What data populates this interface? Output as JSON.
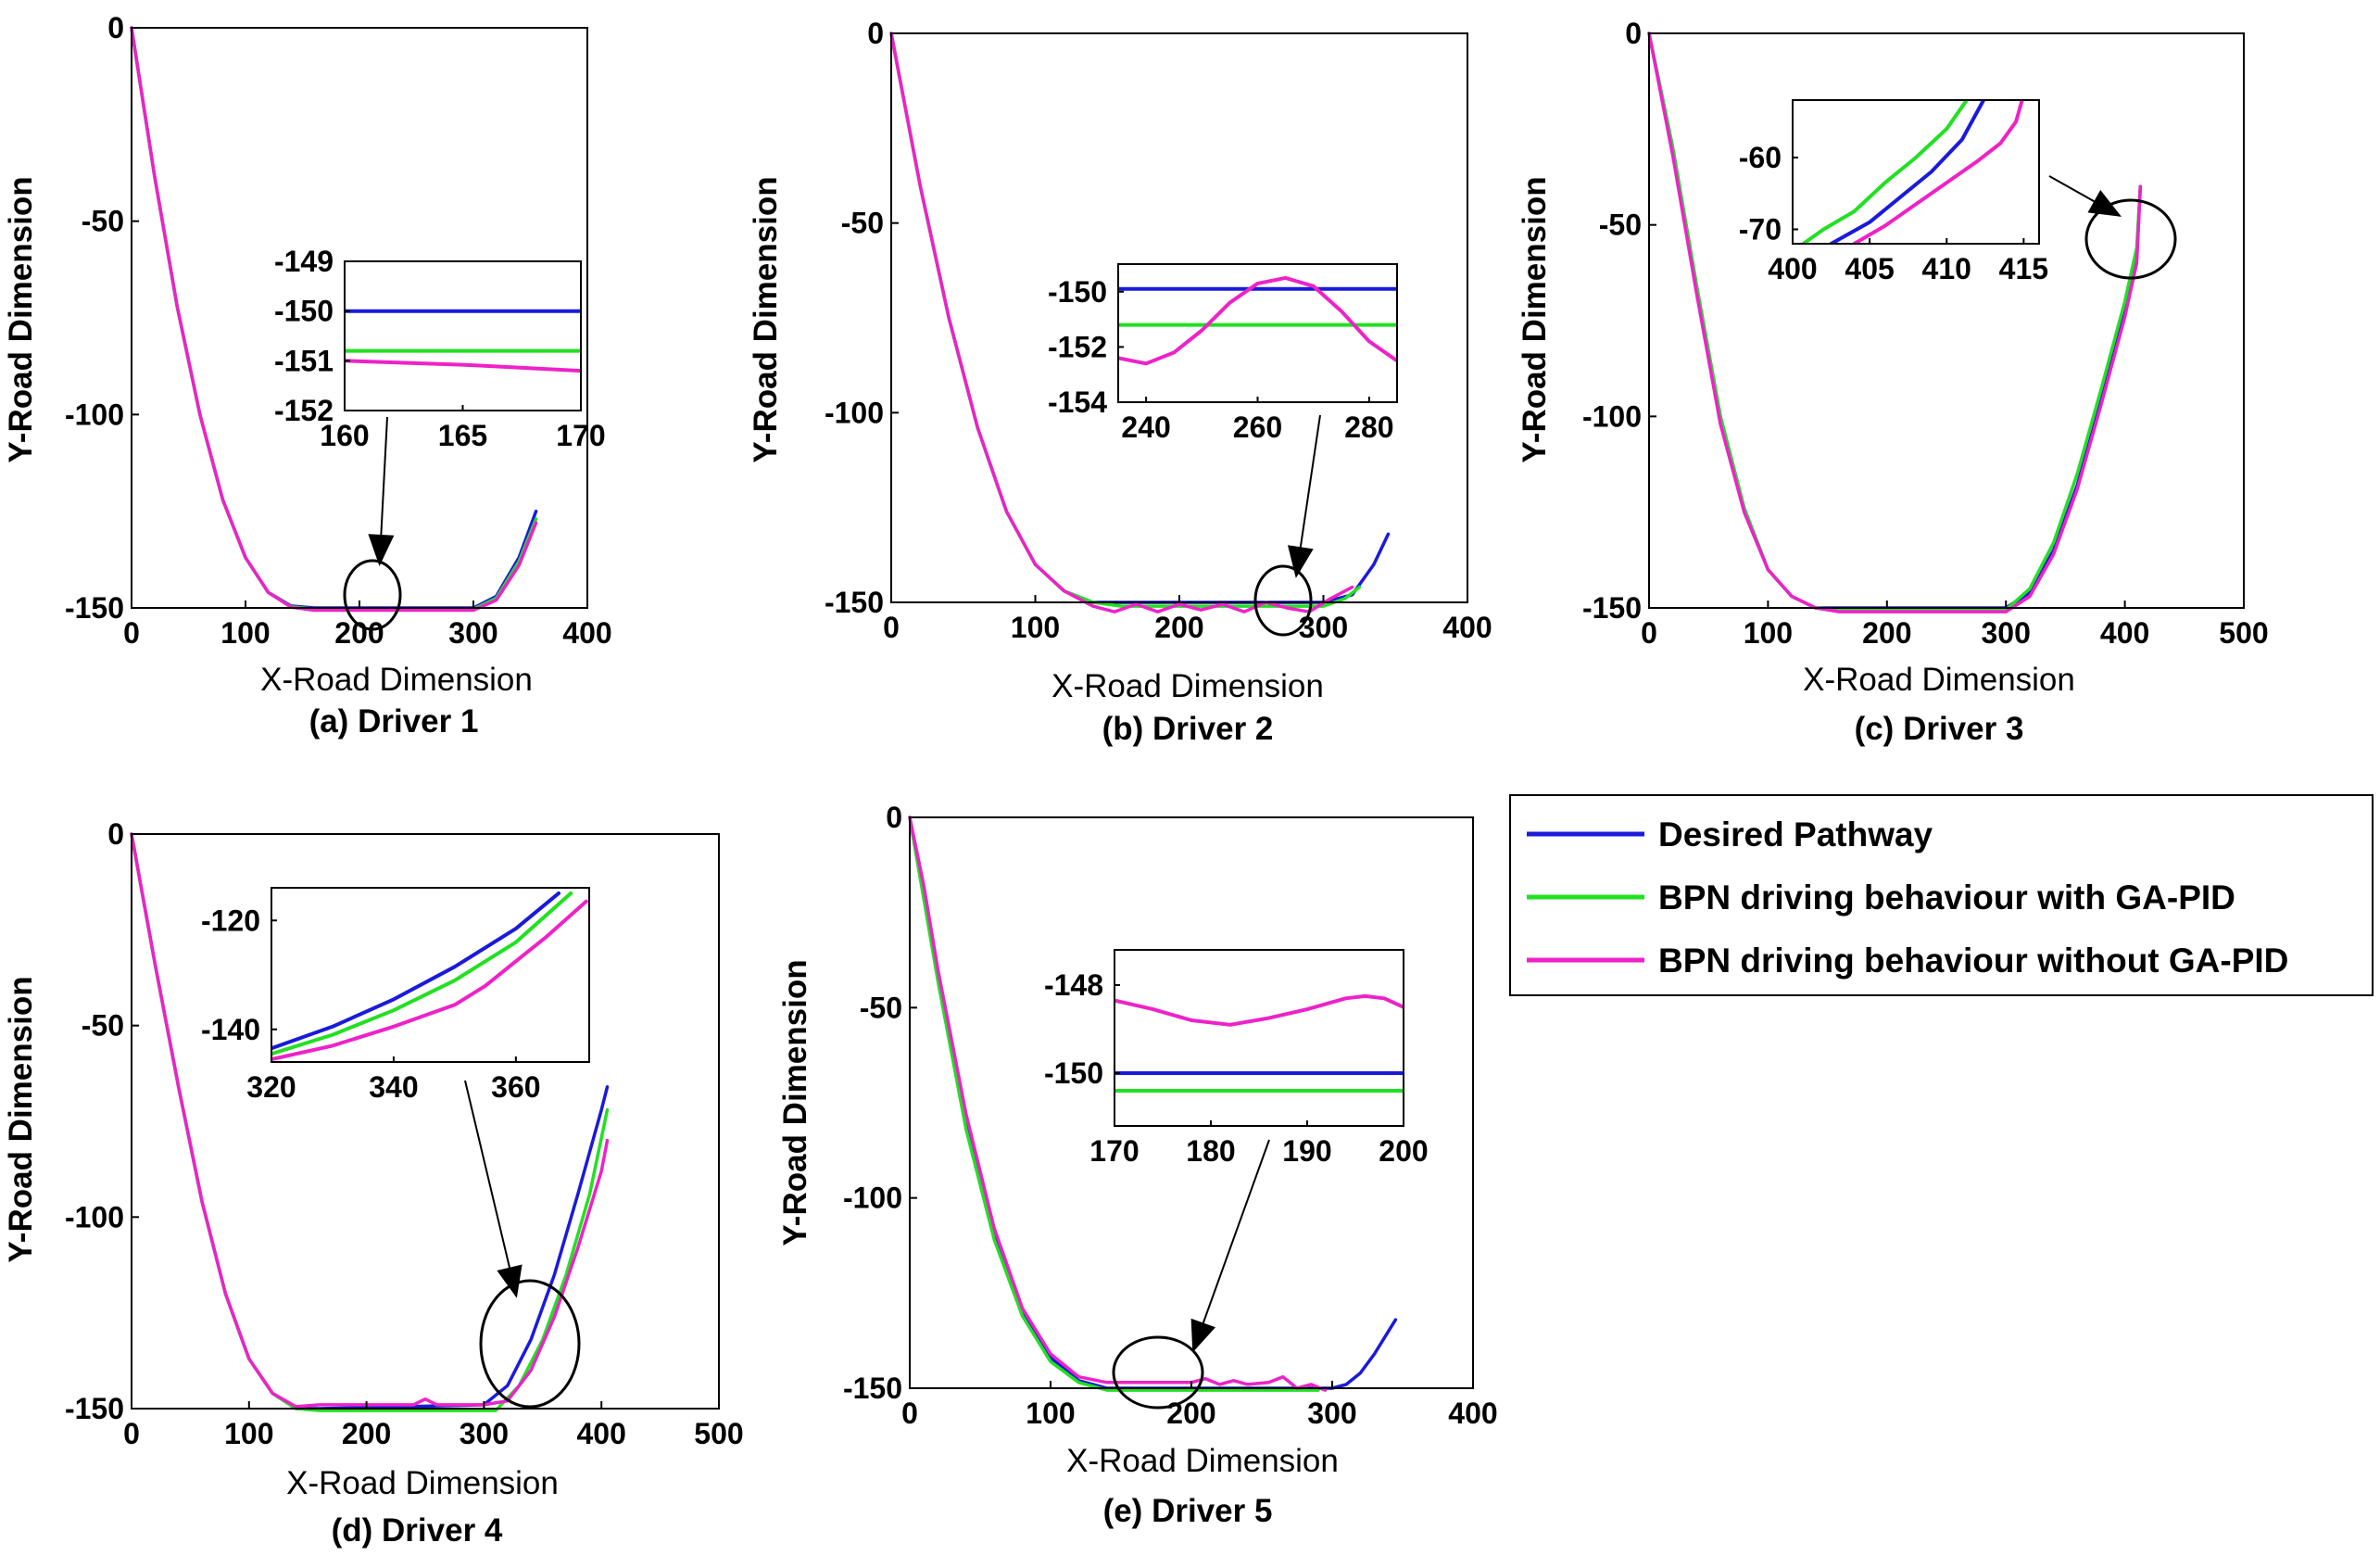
{
  "colors": {
    "desired": "#1a1adb",
    "with_gapid": "#22e022",
    "without_gapid": "#ee22c8"
  },
  "legend": {
    "entries": [
      "Desired Pathway",
      "BPN driving behaviour with GA-PID",
      "BPN driving behaviour without GA-PID"
    ]
  },
  "chart_data": [
    {
      "type": "line",
      "caption": "(a) Driver 1",
      "xlabel": "X-Road Dimension",
      "ylabel": "Y-Road Dimension",
      "xlim": [
        0,
        400
      ],
      "ylim": [
        -150,
        0
      ],
      "xticks": [
        "0",
        "100",
        "200",
        "300",
        "400"
      ],
      "yticks": [
        "0",
        "-50",
        "-100",
        "-150"
      ],
      "series": [
        {
          "name": "Desired Pathway",
          "x": [
            0,
            20,
            40,
            60,
            80,
            100,
            120,
            140,
            160,
            300,
            320,
            340,
            355
          ],
          "y": [
            0,
            -38,
            -72,
            -100,
            -122,
            -137,
            -146,
            -149.5,
            -150,
            -150,
            -147,
            -137,
            -125
          ]
        },
        {
          "name": "BPN driving behaviour with GA-PID",
          "x": [
            0,
            20,
            40,
            60,
            80,
            100,
            120,
            140,
            160,
            300,
            320,
            340,
            355
          ],
          "y": [
            0,
            -38,
            -72,
            -100,
            -122,
            -137,
            -146,
            -149.7,
            -150.3,
            -150.3,
            -147.5,
            -138,
            -127
          ]
        },
        {
          "name": "BPN driving behaviour without GA-PID",
          "x": [
            0,
            20,
            40,
            60,
            80,
            100,
            120,
            140,
            160,
            300,
            320,
            340,
            355
          ],
          "y": [
            0,
            -38,
            -72,
            -100,
            -122,
            -137,
            -146,
            -149.8,
            -150.6,
            -150.6,
            -148,
            -139,
            -128
          ]
        }
      ],
      "inset": {
        "xlim": [
          160,
          170
        ],
        "ylim": [
          -152,
          -149
        ],
        "xticks": [
          "160",
          "165",
          "170"
        ],
        "yticks": [
          "-149",
          "-150",
          "-151",
          "-152"
        ],
        "series": [
          {
            "name": "Desired Pathway",
            "x": [
              160,
              170
            ],
            "y": [
              -150.0,
              -150.0
            ]
          },
          {
            "name": "BPN driving behaviour with GA-PID",
            "x": [
              160,
              170
            ],
            "y": [
              -150.8,
              -150.8
            ]
          },
          {
            "name": "BPN driving behaviour without GA-PID",
            "x": [
              160,
              165,
              170
            ],
            "y": [
              -151.0,
              -151.08,
              -151.2
            ]
          }
        ]
      }
    },
    {
      "type": "line",
      "caption": "(b) Driver 2",
      "xlabel": "X-Road Dimension",
      "ylabel": "Y-Road Dimension",
      "xlim": [
        0,
        400
      ],
      "ylim": [
        -150,
        0
      ],
      "xticks": [
        "0",
        "100",
        "200",
        "300",
        "400"
      ],
      "yticks": [
        "0",
        "-50",
        "-100",
        "-150"
      ],
      "series": [
        {
          "name": "Desired Pathway",
          "x": [
            0,
            20,
            40,
            60,
            80,
            100,
            120,
            140,
            160,
            300,
            320,
            335,
            345
          ],
          "y": [
            0,
            -40,
            -75,
            -104,
            -126,
            -140,
            -147,
            -150,
            -150,
            -150,
            -148,
            -140,
            -132
          ]
        },
        {
          "name": "BPN driving behaviour with GA-PID",
          "x": [
            0,
            20,
            40,
            60,
            80,
            100,
            120,
            140,
            160,
            300,
            315,
            325
          ],
          "y": [
            0,
            -40,
            -75,
            -104,
            -126,
            -140,
            -147,
            -150,
            -151,
            -151,
            -149,
            -146
          ]
        },
        {
          "name": "BPN driving behaviour without GA-PID",
          "x": [
            0,
            20,
            40,
            60,
            80,
            100,
            120,
            140,
            155,
            170,
            185,
            200,
            215,
            230,
            245,
            260,
            275,
            290,
            305,
            320
          ],
          "y": [
            0,
            -40,
            -75,
            -104,
            -126,
            -140,
            -147,
            -151,
            -152.5,
            -150.5,
            -152.5,
            -150.5,
            -152,
            -150.5,
            -152.5,
            -150,
            -151.5,
            -152.5,
            -149,
            -146
          ]
        }
      ],
      "inset": {
        "xlim": [
          235,
          285
        ],
        "ylim": [
          -154,
          -149
        ],
        "xticks": [
          "240",
          "260",
          "280"
        ],
        "yticks": [
          "-150",
          "-152",
          "-154"
        ],
        "series": [
          {
            "name": "Desired Pathway",
            "x": [
              235,
              285
            ],
            "y": [
              -149.9,
              -149.9
            ]
          },
          {
            "name": "BPN driving behaviour with GA-PID",
            "x": [
              235,
              285
            ],
            "y": [
              -151.2,
              -151.2
            ]
          },
          {
            "name": "BPN driving behaviour without GA-PID",
            "x": [
              235,
              240,
              245,
              250,
              255,
              260,
              265,
              270,
              275,
              280,
              285
            ],
            "y": [
              -152.4,
              -152.6,
              -152.2,
              -151.4,
              -150.4,
              -149.7,
              -149.5,
              -149.8,
              -150.7,
              -151.8,
              -152.5
            ]
          }
        ]
      }
    },
    {
      "type": "line",
      "caption": "(c) Driver 3",
      "xlabel": "X-Road Dimension",
      "ylabel": "Y-Road Dimension",
      "xlim": [
        0,
        500
      ],
      "ylim": [
        -150,
        0
      ],
      "xticks": [
        "0",
        "100",
        "200",
        "300",
        "400",
        "500"
      ],
      "yticks": [
        "0",
        "-50",
        "-100",
        "-150"
      ],
      "series": [
        {
          "name": "Desired Pathway",
          "x": [
            0,
            20,
            40,
            60,
            80,
            100,
            120,
            140,
            160,
            300,
            320,
            340,
            360,
            380,
            400,
            410,
            413
          ],
          "y": [
            0,
            -30,
            -66,
            -100,
            -124,
            -140,
            -147,
            -150,
            -150,
            -150,
            -146,
            -135,
            -118,
            -96,
            -72,
            -58,
            -40
          ]
        },
        {
          "name": "BPN driving behaviour with GA-PID",
          "x": [
            0,
            20,
            40,
            60,
            80,
            100,
            120,
            140,
            160,
            300,
            320,
            340,
            360,
            380,
            400,
            410,
            413
          ],
          "y": [
            0,
            -30,
            -66,
            -100,
            -124,
            -140,
            -147,
            -150,
            -150.5,
            -150.5,
            -145,
            -133,
            -115,
            -93,
            -70,
            -56,
            -40
          ]
        },
        {
          "name": "BPN driving behaviour without GA-PID",
          "x": [
            0,
            20,
            40,
            60,
            80,
            100,
            120,
            140,
            160,
            300,
            320,
            340,
            360,
            380,
            400,
            410,
            413
          ],
          "y": [
            0,
            -32,
            -68,
            -102,
            -125,
            -140,
            -147,
            -150,
            -151,
            -151,
            -147,
            -136,
            -119,
            -97,
            -74,
            -60,
            -40
          ]
        }
      ],
      "inset": {
        "xlim": [
          400,
          416
        ],
        "ylim": [
          -72,
          -52
        ],
        "xticks": [
          "400",
          "405",
          "410",
          "415"
        ],
        "yticks": [
          "-60",
          "-70"
        ],
        "series": [
          {
            "name": "Desired Pathway",
            "x": [
              402.5,
              405,
              407,
              409,
              411,
              412.4
            ],
            "y": [
              -72,
              -69,
              -65.5,
              -62,
              -57.5,
              -52
            ]
          },
          {
            "name": "BPN driving behaviour with GA-PID",
            "x": [
              400.7,
              402,
              404,
              406,
              408,
              410,
              411.3
            ],
            "y": [
              -72,
              -70,
              -67.5,
              -63.5,
              -60,
              -56,
              -52
            ]
          },
          {
            "name": "BPN driving behaviour without GA-PID",
            "x": [
              404,
              406,
              408,
              410,
              412,
              413.5,
              414.5,
              414.9
            ],
            "y": [
              -72,
              -69.5,
              -66.5,
              -63.5,
              -60.5,
              -58,
              -55,
              -52
            ]
          }
        ]
      }
    },
    {
      "type": "line",
      "caption": "(d) Driver 4",
      "xlabel": "X-Road Dimension",
      "ylabel": "Y-Road Dimension",
      "xlim": [
        0,
        500
      ],
      "ylim": [
        -150,
        0
      ],
      "xticks": [
        "0",
        "100",
        "200",
        "300",
        "400",
        "500"
      ],
      "yticks": [
        "0",
        "-50",
        "-100",
        "-150"
      ],
      "series": [
        {
          "name": "Desired Pathway",
          "x": [
            0,
            20,
            40,
            60,
            80,
            100,
            120,
            140,
            160,
            300,
            320,
            340,
            360,
            380,
            400,
            405
          ],
          "y": [
            0,
            -34,
            -66,
            -96,
            -120,
            -137,
            -146,
            -150,
            -150,
            -149,
            -144,
            -132,
            -115,
            -94,
            -72,
            -66
          ]
        },
        {
          "name": "BPN driving behaviour with GA-PID",
          "x": [
            0,
            20,
            40,
            60,
            80,
            100,
            120,
            140,
            160,
            310,
            330,
            350,
            370,
            390,
            405
          ],
          "y": [
            0,
            -34,
            -66,
            -96,
            -120,
            -137,
            -146,
            -150,
            -150.5,
            -150.5,
            -144,
            -132,
            -115,
            -94,
            -72
          ]
        },
        {
          "name": "BPN driving behaviour without GA-PID",
          "x": [
            0,
            20,
            40,
            60,
            80,
            100,
            120,
            140,
            160,
            240,
            250,
            260,
            300,
            320,
            340,
            360,
            380,
            400,
            405
          ],
          "y": [
            0,
            -34,
            -66,
            -96,
            -120,
            -137,
            -146,
            -149.5,
            -149,
            -149,
            -147.5,
            -149,
            -149,
            -148,
            -140,
            -126,
            -108,
            -88,
            -80
          ]
        }
      ],
      "inset": {
        "xlim": [
          320,
          372
        ],
        "ylim": [
          -146,
          -114
        ],
        "xticks": [
          "320",
          "340",
          "360"
        ],
        "yticks": [
          "-120",
          "-140"
        ],
        "series": [
          {
            "name": "Desired Pathway",
            "x": [
              320,
              330,
              340,
              350,
              360,
              367
            ],
            "y": [
              -143.5,
              -139.5,
              -134.5,
              -128.5,
              -121.5,
              -115
            ]
          },
          {
            "name": "BPN driving behaviour with GA-PID",
            "x": [
              320,
              330,
              340,
              350,
              360,
              369
            ],
            "y": [
              -144.5,
              -141,
              -136.5,
              -131,
              -124,
              -115
            ]
          },
          {
            "name": "BPN driving behaviour without GA-PID",
            "x": [
              320,
              330,
              340,
              350,
              355,
              360,
              365,
              371.5
            ],
            "y": [
              -145.5,
              -143,
              -139.5,
              -135.5,
              -132,
              -127.5,
              -123,
              -116.5
            ]
          }
        ]
      }
    },
    {
      "type": "line",
      "caption": "(e) Driver 5",
      "xlabel": "X-Road Dimension",
      "ylabel": "Y-Road Dimension",
      "xlim": [
        0,
        400
      ],
      "ylim": [
        -150,
        0
      ],
      "xticks": [
        "0",
        "100",
        "200",
        "300",
        "400"
      ],
      "yticks": [
        "0",
        "-50",
        "-100",
        "-150"
      ],
      "series": [
        {
          "name": "Desired Pathway",
          "x": [
            0,
            20,
            40,
            60,
            80,
            100,
            120,
            140,
            160,
            300,
            310,
            320,
            330,
            345
          ],
          "y": [
            0,
            -42,
            -80,
            -109,
            -130,
            -142,
            -148,
            -150,
            -150,
            -150,
            -149,
            -146,
            -141,
            -132
          ]
        },
        {
          "name": "BPN driving behaviour with GA-PID",
          "x": [
            0,
            20,
            40,
            60,
            80,
            100,
            120,
            140,
            160,
            290
          ],
          "y": [
            0,
            -43,
            -82,
            -111,
            -131,
            -143,
            -148.5,
            -150.5,
            -150.5,
            -150.5
          ]
        },
        {
          "name": "BPN driving behaviour without GA-PID",
          "x": [
            0,
            10,
            20,
            40,
            60,
            80,
            100,
            120,
            140,
            180,
            200,
            210,
            220,
            230,
            240,
            255,
            265,
            275,
            285,
            295
          ],
          "y": [
            0,
            -18,
            -40,
            -78,
            -108,
            -129,
            -141,
            -147,
            -148.5,
            -148.5,
            -148.5,
            -147.5,
            -149,
            -148,
            -149,
            -148.5,
            -147,
            -150,
            -149,
            -150.5
          ]
        }
      ],
      "inset": {
        "xlim": [
          170,
          200
        ],
        "ylim": [
          -151.2,
          -147.2
        ],
        "xticks": [
          "170",
          "180",
          "190",
          "200"
        ],
        "yticks": [
          "-148",
          "-150"
        ],
        "series": [
          {
            "name": "Desired Pathway",
            "x": [
              170,
              200
            ],
            "y": [
              -150.0,
              -150.0
            ]
          },
          {
            "name": "BPN driving behaviour with GA-PID",
            "x": [
              170,
              200
            ],
            "y": [
              -150.4,
              -150.4
            ]
          },
          {
            "name": "BPN driving behaviour without GA-PID",
            "x": [
              170,
              174,
              178,
              182,
              186,
              190,
              194,
              196,
              198,
              200
            ],
            "y": [
              -148.35,
              -148.55,
              -148.8,
              -148.9,
              -148.75,
              -148.55,
              -148.3,
              -148.25,
              -148.3,
              -148.5
            ]
          }
        ]
      }
    }
  ]
}
